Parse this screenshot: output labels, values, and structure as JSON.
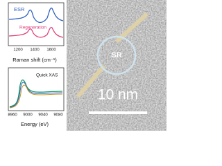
{
  "raman_inset": {
    "legend": [
      "ESR",
      "Regeneration"
    ],
    "xticks": [
      "1200",
      "1400",
      "1600"
    ],
    "xlabel": "Raman shift (cm⁻¹)"
  },
  "xas_inset": {
    "legend": [
      "Quick XAS"
    ],
    "xticks": [
      "8960",
      "9000",
      "9040",
      "9080"
    ],
    "xlabel": "Energy (eV)"
  },
  "tem_image": {
    "circle_label": "SR",
    "scale_bar": "10 nm"
  }
}
